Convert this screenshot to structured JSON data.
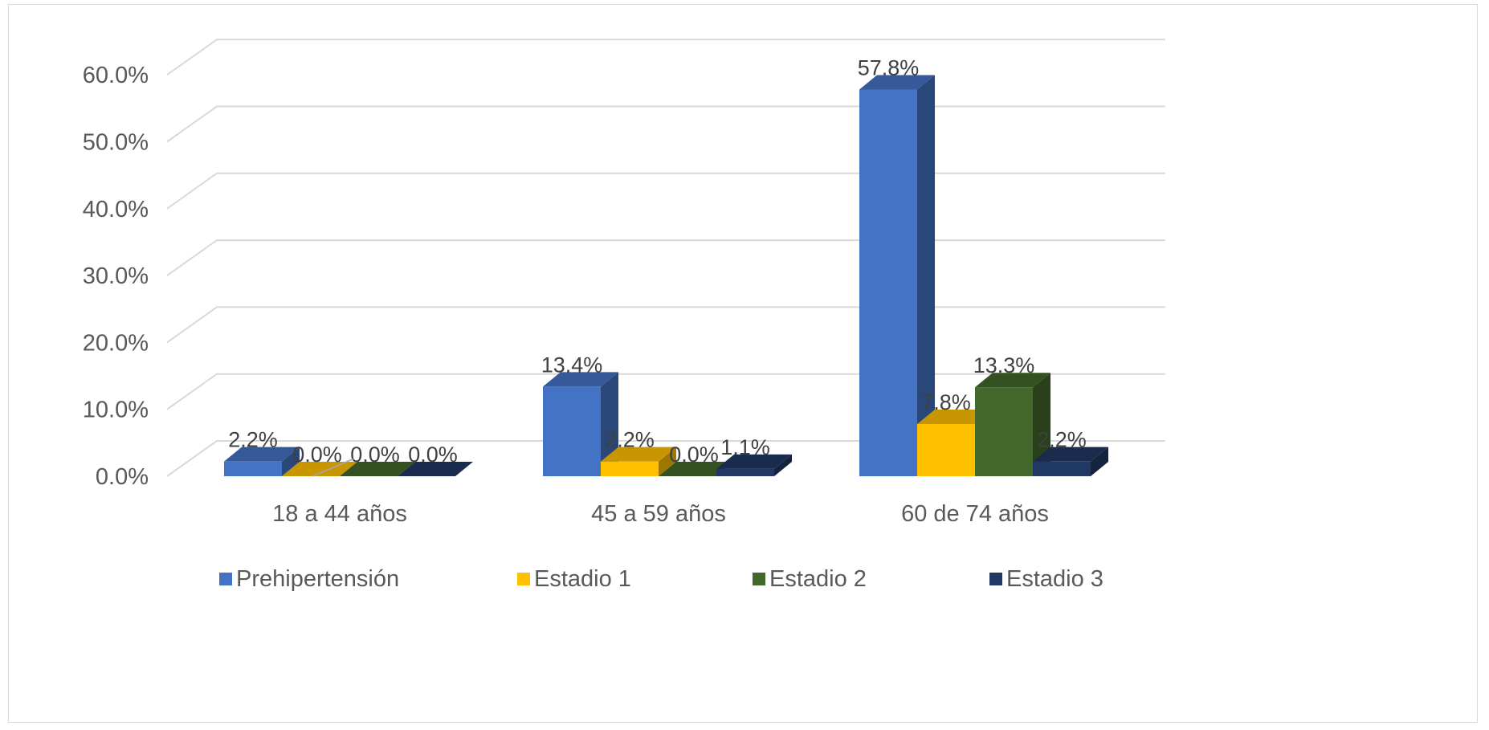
{
  "chart_data": {
    "type": "bar",
    "style": "3d-clustered-column",
    "categories": [
      "18 a 44 años",
      "45 a 59 años",
      "60 de 74 años"
    ],
    "series": [
      {
        "name": "Prehipertensión",
        "values": [
          2.2,
          13.4,
          57.8
        ],
        "labels": [
          "2.2%",
          "13.4%",
          "57.8%"
        ],
        "color": "#4472C4"
      },
      {
        "name": "Estadio 1",
        "values": [
          0.0,
          2.2,
          7.8
        ],
        "labels": [
          "0.0%",
          "2.2%",
          "7.8%"
        ],
        "color": "#FFC000"
      },
      {
        "name": "Estadio 2",
        "values": [
          0.0,
          0.0,
          13.3
        ],
        "labels": [
          "0.0%",
          "0.0%",
          "13.3%"
        ],
        "color": "#43682B"
      },
      {
        "name": "Estadio 3",
        "values": [
          0.0,
          1.1,
          2.2
        ],
        "labels": [
          "0.0%",
          "1.1%",
          "2.2%"
        ],
        "color": "#203864"
      }
    ],
    "y_ticks": [
      "0.0%",
      "10.0%",
      "20.0%",
      "30.0%",
      "40.0%",
      "50.0%",
      "60.0%"
    ],
    "ylim": [
      0,
      60
    ],
    "grid": true,
    "legend_position": "bottom",
    "title": "",
    "xlabel": "",
    "ylabel": ""
  }
}
